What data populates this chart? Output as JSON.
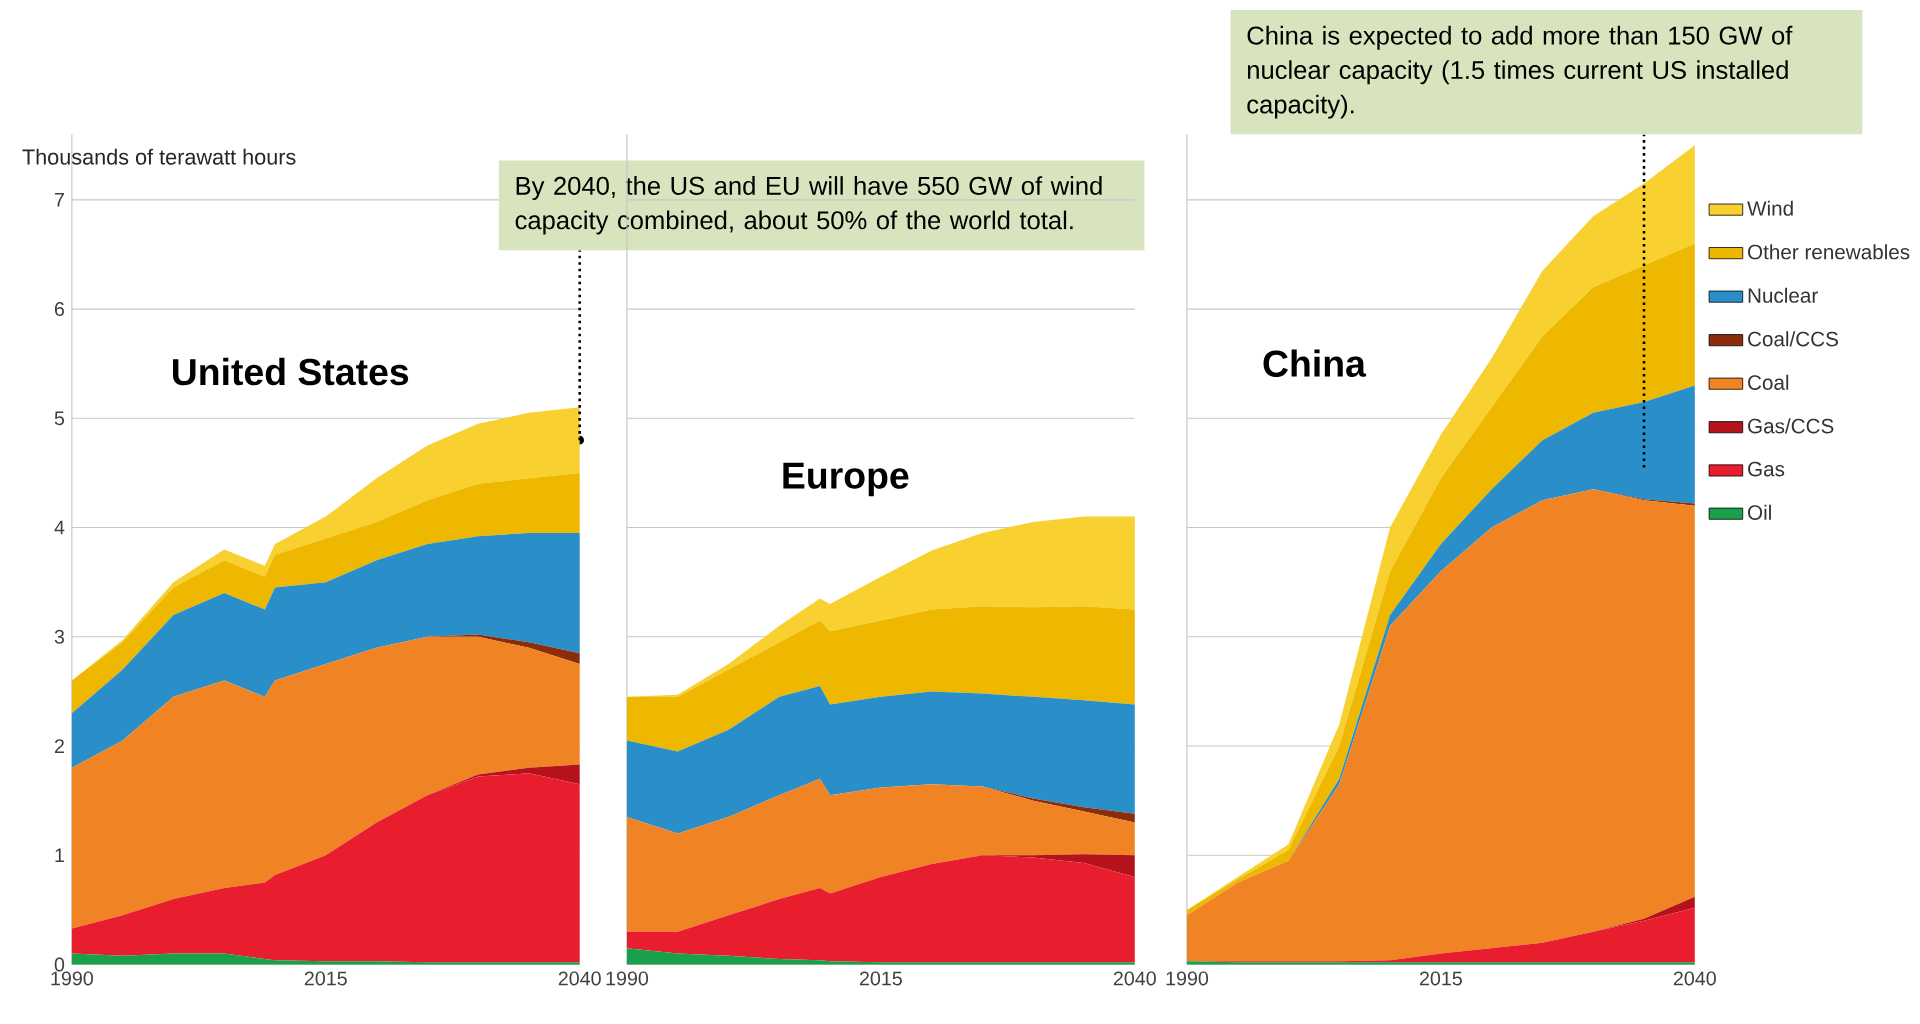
{
  "chart_data": [
    {
      "type": "area",
      "title": "United States",
      "ylabel": "Thousands of terawatt hours",
      "stacked": true,
      "grid": "y",
      "x": [
        1990,
        1995,
        2000,
        2005,
        2009,
        2010,
        2015,
        2020,
        2025,
        2030,
        2035,
        2040
      ],
      "xlim": [
        1990,
        2040
      ],
      "xticks": [
        1990,
        2015,
        2040
      ],
      "ylim": [
        0,
        7.6
      ],
      "yticks": [
        0,
        1,
        2,
        3,
        4,
        5,
        6,
        7
      ],
      "annotations": [
        {
          "text": "By 2040, the US and EU will have 550 GW of wind capacity combined, about 50% of the world total.",
          "x": 2040,
          "y": 4.8
        }
      ],
      "series": [
        {
          "color": "#1aa04a",
          "values": [
            0.1,
            0.08,
            0.1,
            0.1,
            0.05,
            0.04,
            0.03,
            0.03,
            0.02,
            0.02,
            0.02,
            0.02
          ]
        },
        {
          "color": "#e81e2e",
          "values": [
            0.23,
            0.37,
            0.5,
            0.6,
            0.7,
            0.78,
            0.97,
            1.27,
            1.53,
            1.7,
            1.73,
            1.63
          ]
        },
        {
          "color": "#b5121b",
          "values": [
            0,
            0,
            0,
            0,
            0,
            0,
            0,
            0,
            0,
            0.02,
            0.05,
            0.18
          ]
        },
        {
          "color": "#f08323",
          "values": [
            1.47,
            1.6,
            1.85,
            1.9,
            1.7,
            1.78,
            1.75,
            1.6,
            1.45,
            1.26,
            1.1,
            0.92
          ]
        },
        {
          "color": "#8b2c0a",
          "values": [
            0,
            0,
            0,
            0,
            0,
            0,
            0,
            0,
            0,
            0.02,
            0.05,
            0.1
          ]
        },
        {
          "color": "#2a8fc9",
          "values": [
            0.5,
            0.65,
            0.75,
            0.8,
            0.8,
            0.85,
            0.75,
            0.8,
            0.85,
            0.9,
            1.0,
            1.1
          ]
        },
        {
          "color": "#eeb800",
          "values": [
            0.3,
            0.25,
            0.25,
            0.3,
            0.3,
            0.3,
            0.4,
            0.35,
            0.4,
            0.48,
            0.5,
            0.55
          ]
        },
        {
          "color": "#f8d030",
          "values": [
            0,
            0.02,
            0.05,
            0.1,
            0.1,
            0.1,
            0.2,
            0.4,
            0.5,
            0.55,
            0.6,
            0.6
          ]
        }
      ]
    },
    {
      "type": "area",
      "title": "Europe",
      "stacked": true,
      "grid": "y",
      "tick_labels": "x",
      "x": [
        1990,
        1995,
        2000,
        2005,
        2009,
        2010,
        2015,
        2020,
        2025,
        2030,
        2035,
        2040
      ],
      "xlim": [
        1990,
        2040
      ],
      "xticks": [
        1990,
        2015,
        2040
      ],
      "ylim": [
        0,
        7.6
      ],
      "yticks": [
        0,
        1,
        2,
        3,
        4,
        5,
        6,
        7
      ],
      "series": [
        {
          "color": "#1aa04a",
          "values": [
            0.15,
            0.1,
            0.08,
            0.05,
            0.04,
            0.03,
            0.02,
            0.02,
            0.02,
            0.02,
            0.02,
            0.02
          ]
        },
        {
          "color": "#e81e2e",
          "values": [
            0.15,
            0.2,
            0.37,
            0.55,
            0.66,
            0.62,
            0.78,
            0.9,
            0.98,
            0.96,
            0.91,
            0.78
          ]
        },
        {
          "color": "#b5121b",
          "values": [
            0,
            0,
            0,
            0,
            0,
            0,
            0,
            0,
            0,
            0.02,
            0.08,
            0.2
          ]
        },
        {
          "color": "#f08323",
          "values": [
            1.05,
            0.9,
            0.9,
            0.95,
            1.0,
            0.9,
            0.82,
            0.73,
            0.63,
            0.5,
            0.39,
            0.3
          ]
        },
        {
          "color": "#8b2c0a",
          "values": [
            0,
            0,
            0,
            0,
            0,
            0,
            0,
            0,
            0,
            0.02,
            0.04,
            0.08
          ]
        },
        {
          "color": "#2a8fc9",
          "values": [
            0.7,
            0.75,
            0.8,
            0.9,
            0.85,
            0.83,
            0.83,
            0.85,
            0.85,
            0.93,
            0.98,
            1.0
          ]
        },
        {
          "color": "#eeb800",
          "values": [
            0.4,
            0.5,
            0.55,
            0.5,
            0.6,
            0.67,
            0.7,
            0.75,
            0.8,
            0.82,
            0.86,
            0.87
          ]
        },
        {
          "color": "#f8d030",
          "values": [
            0,
            0.02,
            0.05,
            0.15,
            0.2,
            0.25,
            0.4,
            0.54,
            0.67,
            0.78,
            0.82,
            0.85
          ]
        }
      ]
    },
    {
      "type": "area",
      "title": "China",
      "stacked": true,
      "grid": "y",
      "tick_labels": "x",
      "legend": "right",
      "x": [
        1990,
        1995,
        2000,
        2005,
        2010,
        2015,
        2020,
        2025,
        2030,
        2035,
        2040
      ],
      "xlim": [
        1990,
        2040
      ],
      "xticks": [
        1990,
        2015,
        2040
      ],
      "ylim": [
        0,
        7.6
      ],
      "yticks": [
        0,
        1,
        2,
        3,
        4,
        5,
        6,
        7
      ],
      "annotations": [
        {
          "text": "China is expected to add more than 150 GW of nuclear capacity (1.5 times current US installed capacity).",
          "x": 2035,
          "y": 4.55
        }
      ],
      "series": [
        {
          "name": "Oil",
          "color": "#1aa04a",
          "values": [
            0.03,
            0.02,
            0.02,
            0.02,
            0.02,
            0.02,
            0.02,
            0.02,
            0.02,
            0.02,
            0.02
          ]
        },
        {
          "name": "Gas",
          "color": "#e81e2e",
          "values": [
            0,
            0.01,
            0.01,
            0.01,
            0.02,
            0.08,
            0.13,
            0.18,
            0.28,
            0.38,
            0.5
          ]
        },
        {
          "name": "Gas/CCS",
          "color": "#b5121b",
          "values": [
            0,
            0,
            0,
            0,
            0,
            0,
            0,
            0,
            0,
            0.02,
            0.1
          ]
        },
        {
          "name": "Coal",
          "color": "#f08323",
          "values": [
            0.42,
            0.72,
            0.92,
            1.62,
            3.06,
            3.5,
            3.85,
            4.05,
            4.05,
            3.83,
            3.58
          ]
        },
        {
          "name": "Coal/CCS",
          "color": "#8b2c0a",
          "values": [
            0,
            0,
            0,
            0,
            0,
            0,
            0,
            0,
            0,
            0.01,
            0.02
          ]
        },
        {
          "name": "Nuclear",
          "color": "#2a8fc9",
          "values": [
            0,
            0,
            0,
            0.05,
            0.1,
            0.25,
            0.35,
            0.55,
            0.7,
            0.89,
            1.08
          ]
        },
        {
          "name": "Other renewables",
          "color": "#eeb800",
          "values": [
            0.05,
            0.03,
            0.1,
            0.3,
            0.4,
            0.6,
            0.75,
            0.95,
            1.15,
            1.25,
            1.3
          ]
        },
        {
          "name": "Wind",
          "color": "#f8d030",
          "values": [
            0,
            0.02,
            0.05,
            0.2,
            0.4,
            0.4,
            0.45,
            0.6,
            0.65,
            0.75,
            0.9
          ]
        }
      ]
    }
  ]
}
